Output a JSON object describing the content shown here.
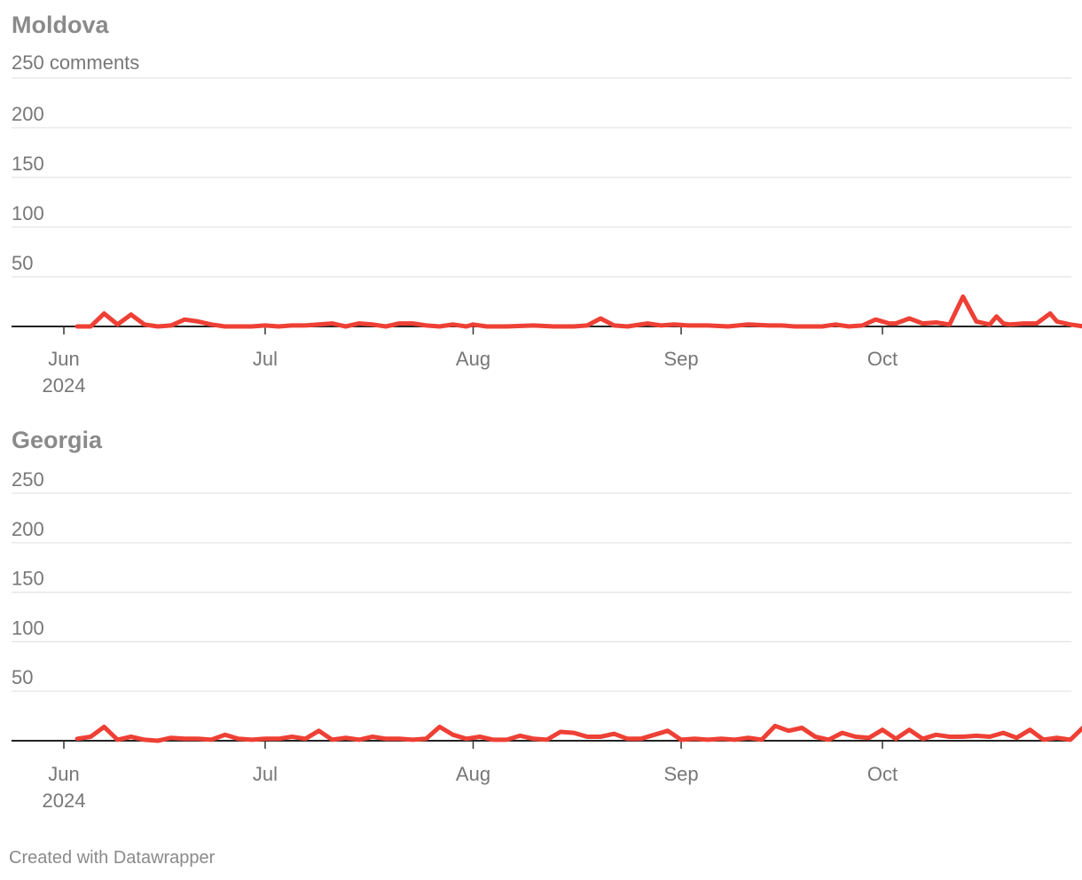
{
  "footer": {
    "credit": "Created with Datawrapper"
  },
  "colors": {
    "series": "#ee4035",
    "event_line": "#c4c4c4",
    "annotation": "#9a9a9a",
    "title": "#8a8a8a"
  },
  "chart_data": [
    {
      "type": "line",
      "title": "Moldova",
      "y_unit_label": "250 comments",
      "ylim": [
        0,
        250
      ],
      "yticks": [
        "50",
        "100",
        "150",
        "200"
      ],
      "xlim": [
        "2024-05-25",
        "2024-10-31"
      ],
      "x_ticks": [
        {
          "date": "2024-06-01",
          "label": "Jun",
          "sublabel": "2024"
        },
        {
          "date": "2024-07-01",
          "label": "Jul"
        },
        {
          "date": "2024-08-01",
          "label": "Aug"
        },
        {
          "date": "2024-09-01",
          "label": "Sep"
        },
        {
          "date": "2024-10-01",
          "label": "Oct"
        }
      ],
      "grid": true,
      "series": [
        {
          "points": [
            [
              "2024-06-03",
              0
            ],
            [
              "2024-06-05",
              0
            ],
            [
              "2024-06-07",
              13
            ],
            [
              "2024-06-09",
              2
            ],
            [
              "2024-06-11",
              12
            ],
            [
              "2024-06-13",
              2
            ],
            [
              "2024-06-15",
              0
            ],
            [
              "2024-06-17",
              1
            ],
            [
              "2024-06-19",
              7
            ],
            [
              "2024-06-21",
              5
            ],
            [
              "2024-06-23",
              2
            ],
            [
              "2024-06-25",
              0
            ],
            [
              "2024-06-29",
              0
            ],
            [
              "2024-07-01",
              1
            ],
            [
              "2024-07-03",
              0
            ],
            [
              "2024-07-05",
              1
            ],
            [
              "2024-07-07",
              1
            ],
            [
              "2024-07-09",
              2
            ],
            [
              "2024-07-11",
              3
            ],
            [
              "2024-07-13",
              0
            ],
            [
              "2024-07-15",
              3
            ],
            [
              "2024-07-17",
              2
            ],
            [
              "2024-07-19",
              0
            ],
            [
              "2024-07-21",
              3
            ],
            [
              "2024-07-23",
              3
            ],
            [
              "2024-07-25",
              1
            ],
            [
              "2024-07-27",
              0
            ],
            [
              "2024-07-29",
              2
            ],
            [
              "2024-07-31",
              0
            ],
            [
              "2024-08-01",
              2
            ],
            [
              "2024-08-03",
              0
            ],
            [
              "2024-08-06",
              0
            ],
            [
              "2024-08-10",
              1
            ],
            [
              "2024-08-13",
              0
            ],
            [
              "2024-08-16",
              0
            ],
            [
              "2024-08-18",
              1
            ],
            [
              "2024-08-20",
              8
            ],
            [
              "2024-08-22",
              1
            ],
            [
              "2024-08-24",
              0
            ],
            [
              "2024-08-27",
              3
            ],
            [
              "2024-08-29",
              1
            ],
            [
              "2024-08-31",
              2
            ],
            [
              "2024-09-02",
              1
            ],
            [
              "2024-09-05",
              1
            ],
            [
              "2024-09-08",
              0
            ],
            [
              "2024-09-11",
              2
            ],
            [
              "2024-09-14",
              1
            ],
            [
              "2024-09-16",
              1
            ],
            [
              "2024-09-18",
              0
            ],
            [
              "2024-09-20",
              0
            ],
            [
              "2024-09-22",
              0
            ],
            [
              "2024-09-24",
              2
            ],
            [
              "2024-09-26",
              0
            ],
            [
              "2024-09-28",
              1
            ],
            [
              "2024-09-30",
              7
            ],
            [
              "2024-10-02",
              3
            ],
            [
              "2024-10-03",
              3
            ],
            [
              "2024-10-05",
              8
            ],
            [
              "2024-10-07",
              3
            ],
            [
              "2024-10-09",
              4
            ],
            [
              "2024-10-11",
              2
            ],
            [
              "2024-10-13",
              30
            ],
            [
              "2024-10-15",
              5
            ],
            [
              "2024-10-17",
              2
            ],
            [
              "2024-10-18",
              10
            ],
            [
              "2024-10-19",
              3
            ],
            [
              "2024-10-20",
              2
            ],
            [
              "2024-10-22",
              3
            ],
            [
              "2024-10-24",
              3
            ],
            [
              "2024-10-26",
              13
            ],
            [
              "2024-10-27",
              5
            ],
            [
              "2024-10-29",
              2
            ],
            [
              "2024-10-31",
              0
            ]
          ]
        }
      ]
    },
    {
      "type": "line",
      "title": "Georgia",
      "ylim": [
        0,
        250
      ],
      "yticks": [
        "50",
        "100",
        "150",
        "200",
        "250"
      ],
      "xlim": [
        "2024-05-25",
        "2024-10-31"
      ],
      "x_ticks": [
        {
          "date": "2024-06-01",
          "label": "Jun",
          "sublabel": "2024"
        },
        {
          "date": "2024-07-01",
          "label": "Jul"
        },
        {
          "date": "2024-08-01",
          "label": "Aug"
        },
        {
          "date": "2024-09-01",
          "label": "Sep"
        },
        {
          "date": "2024-10-01",
          "label": "Oct"
        }
      ],
      "grid": true,
      "series": [
        {
          "points": [
            [
              "2024-06-03",
              2
            ],
            [
              "2024-06-05",
              4
            ],
            [
              "2024-06-07",
              14
            ],
            [
              "2024-06-09",
              1
            ],
            [
              "2024-06-11",
              4
            ],
            [
              "2024-06-13",
              1
            ],
            [
              "2024-06-15",
              0
            ],
            [
              "2024-06-17",
              3
            ],
            [
              "2024-06-19",
              2
            ],
            [
              "2024-06-21",
              2
            ],
            [
              "2024-06-23",
              1
            ],
            [
              "2024-06-25",
              6
            ],
            [
              "2024-06-27",
              2
            ],
            [
              "2024-06-29",
              1
            ],
            [
              "2024-07-01",
              2
            ],
            [
              "2024-07-03",
              2
            ],
            [
              "2024-07-05",
              4
            ],
            [
              "2024-07-07",
              2
            ],
            [
              "2024-07-09",
              10
            ],
            [
              "2024-07-11",
              1
            ],
            [
              "2024-07-13",
              3
            ],
            [
              "2024-07-15",
              1
            ],
            [
              "2024-07-17",
              4
            ],
            [
              "2024-07-19",
              2
            ],
            [
              "2024-07-21",
              2
            ],
            [
              "2024-07-23",
              1
            ],
            [
              "2024-07-25",
              2
            ],
            [
              "2024-07-27",
              14
            ],
            [
              "2024-07-29",
              6
            ],
            [
              "2024-07-31",
              2
            ],
            [
              "2024-08-02",
              4
            ],
            [
              "2024-08-04",
              1
            ],
            [
              "2024-08-06",
              1
            ],
            [
              "2024-08-08",
              5
            ],
            [
              "2024-08-10",
              2
            ],
            [
              "2024-08-12",
              1
            ],
            [
              "2024-08-14",
              9
            ],
            [
              "2024-08-16",
              8
            ],
            [
              "2024-08-18",
              4
            ],
            [
              "2024-08-20",
              4
            ],
            [
              "2024-08-22",
              7
            ],
            [
              "2024-08-24",
              2
            ],
            [
              "2024-08-26",
              2
            ],
            [
              "2024-08-28",
              6
            ],
            [
              "2024-08-30",
              10
            ],
            [
              "2024-09-01",
              1
            ],
            [
              "2024-09-03",
              2
            ],
            [
              "2024-09-05",
              1
            ],
            [
              "2024-09-07",
              2
            ],
            [
              "2024-09-09",
              1
            ],
            [
              "2024-09-11",
              3
            ],
            [
              "2024-09-13",
              1
            ],
            [
              "2024-09-15",
              15
            ],
            [
              "2024-09-17",
              10
            ],
            [
              "2024-09-19",
              13
            ],
            [
              "2024-09-21",
              4
            ],
            [
              "2024-09-23",
              1
            ],
            [
              "2024-09-25",
              8
            ],
            [
              "2024-09-27",
              4
            ],
            [
              "2024-09-29",
              3
            ],
            [
              "2024-10-01",
              11
            ],
            [
              "2024-10-03",
              2
            ],
            [
              "2024-10-05",
              11
            ],
            [
              "2024-10-07",
              2
            ],
            [
              "2024-10-09",
              6
            ],
            [
              "2024-10-11",
              4
            ],
            [
              "2024-10-13",
              4
            ],
            [
              "2024-10-15",
              5
            ],
            [
              "2024-10-17",
              4
            ],
            [
              "2024-10-19",
              8
            ],
            [
              "2024-10-21",
              3
            ],
            [
              "2024-10-23",
              11
            ],
            [
              "2024-10-25",
              1
            ],
            [
              "2024-10-27",
              3
            ],
            [
              "2024-10-29",
              1
            ],
            [
              "2024-10-31",
              14
            ]
          ]
        }
      ]
    }
  ]
}
